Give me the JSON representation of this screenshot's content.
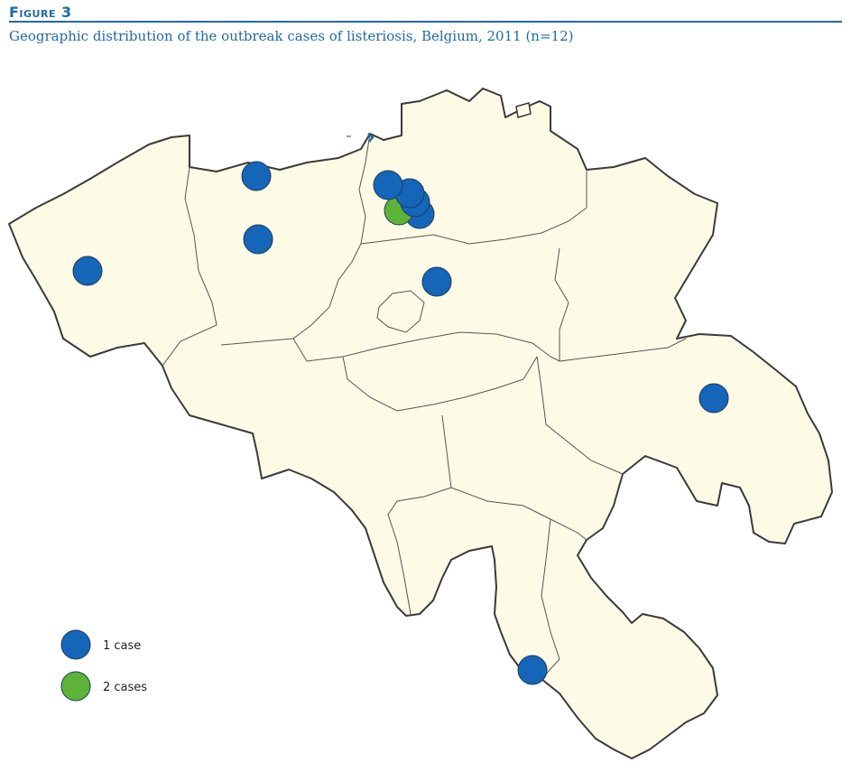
{
  "header": {
    "figure_label": "Figure 3",
    "caption": "Geographic distribution of the outbreak cases of listeriosis, Belgium, 2011 (n=12)"
  },
  "colors": {
    "land": "#fdfbe6",
    "border": "#3a3a3a",
    "one_case": "#1565b8",
    "two_cases": "#5cb338",
    "accent": "#1f6aa5"
  },
  "legend": {
    "items": [
      {
        "label": "1 case",
        "color": "#1565b8"
      },
      {
        "label": "2 cases",
        "color": "#5cb338"
      }
    ]
  },
  "cases": [
    {
      "id": "case-west-flanders-west",
      "count": 1
    },
    {
      "id": "case-west-flanders-coast",
      "count": 1
    },
    {
      "id": "case-west-flanders-centre",
      "count": 1
    },
    {
      "id": "case-east-flanders-1",
      "count": 1
    },
    {
      "id": "case-east-flanders-2",
      "count": 1
    },
    {
      "id": "case-east-flanders-3",
      "count": 1
    },
    {
      "id": "case-east-flanders-4",
      "count": 1
    },
    {
      "id": "case-east-flanders-5",
      "count": 2
    },
    {
      "id": "case-flemish-brabant",
      "count": 1
    },
    {
      "id": "case-liege",
      "count": 1
    },
    {
      "id": "case-namur-south",
      "count": 1
    }
  ]
}
